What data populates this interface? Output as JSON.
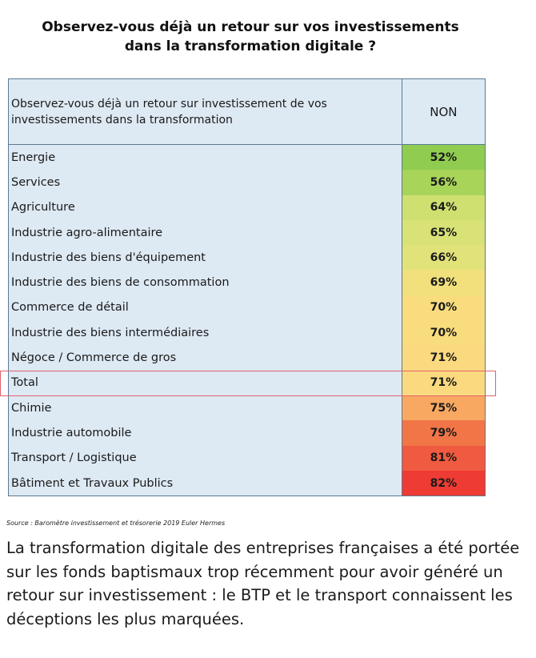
{
  "title_line1": "Observez-vous déjà un retour sur vos investissements",
  "title_line2": "dans la transformation digitale ?",
  "table_header": {
    "label": "Observez-vous déjà un retour sur investissement de vos investissements dans la transformation",
    "value": "NON"
  },
  "source": "Source : Baromètre investissement et trésorerie 2019 Euler Hermes",
  "caption": "La transformation digitale des entreprises françaises a été portée sur les fonds baptismaux trop récemment pour avoir généré un retour sur investissement : le BTP et le transport connaissent les déceptions les plus marquées.",
  "highlighted_row": "Total",
  "chart_data": {
    "type": "table",
    "columns": [
      "Observez-vous déjà un retour sur investissement de vos investissements dans la transformation",
      "NON"
    ],
    "categories": [
      "Energie",
      "Services",
      "Agriculture",
      "Industrie agro-alimentaire",
      "Industrie des biens d'équipement",
      "Industrie des biens de consommation",
      "Commerce de détail",
      "Industrie des biens intermédiaires",
      "Négoce / Commerce de gros",
      "Total",
      "Chimie",
      "Industrie automobile",
      "Transport / Logistique",
      "Bâtiment et Travaux Publics"
    ],
    "values": [
      52,
      56,
      64,
      65,
      66,
      69,
      70,
      70,
      71,
      71,
      75,
      79,
      81,
      82
    ],
    "value_labels": [
      "52%",
      "56%",
      "64%",
      "65%",
      "66%",
      "69%",
      "70%",
      "70%",
      "71%",
      "71%",
      "75%",
      "79%",
      "81%",
      "82%"
    ],
    "colors": [
      "#8fcc4f",
      "#a8d45a",
      "#cfe071",
      "#d8e277",
      "#e2e27a",
      "#f1e07c",
      "#f8dc7e",
      "#f8dc7e",
      "#fbd97f",
      "#fbd97f",
      "#f8a860",
      "#f27548",
      "#f05a40",
      "#ee3b33"
    ]
  }
}
